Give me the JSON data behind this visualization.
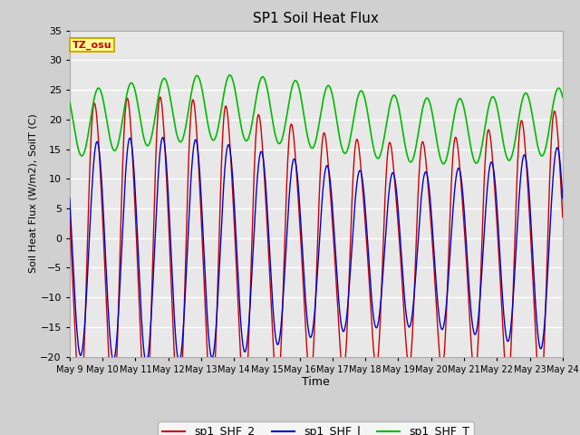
{
  "title": "SP1 Soil Heat Flux",
  "xlabel": "Time",
  "ylabel": "Soil Heat Flux (W/m2), SoilT (C)",
  "ylim": [
    -20,
    35
  ],
  "yticks": [
    -20,
    -15,
    -10,
    -5,
    0,
    5,
    10,
    15,
    20,
    25,
    30,
    35
  ],
  "color_shf2": "#cc0000",
  "color_shf1": "#0000cc",
  "color_shft": "#00bb00",
  "legend_entries": [
    "sp1_SHF_2",
    "sp1_SHF_l",
    "sp1_SHF_T"
  ],
  "tz_label": "TZ_osu",
  "fig_bg_color": "#d0d0d0",
  "plot_bg_color": "#e8e8e8",
  "grid_color": "#ffffff",
  "annotation_box_color": "#ffff99",
  "annotation_text_color": "#cc0000",
  "annotation_box_edge_color": "#ccaa00",
  "spine_color": "#aaaaaa"
}
